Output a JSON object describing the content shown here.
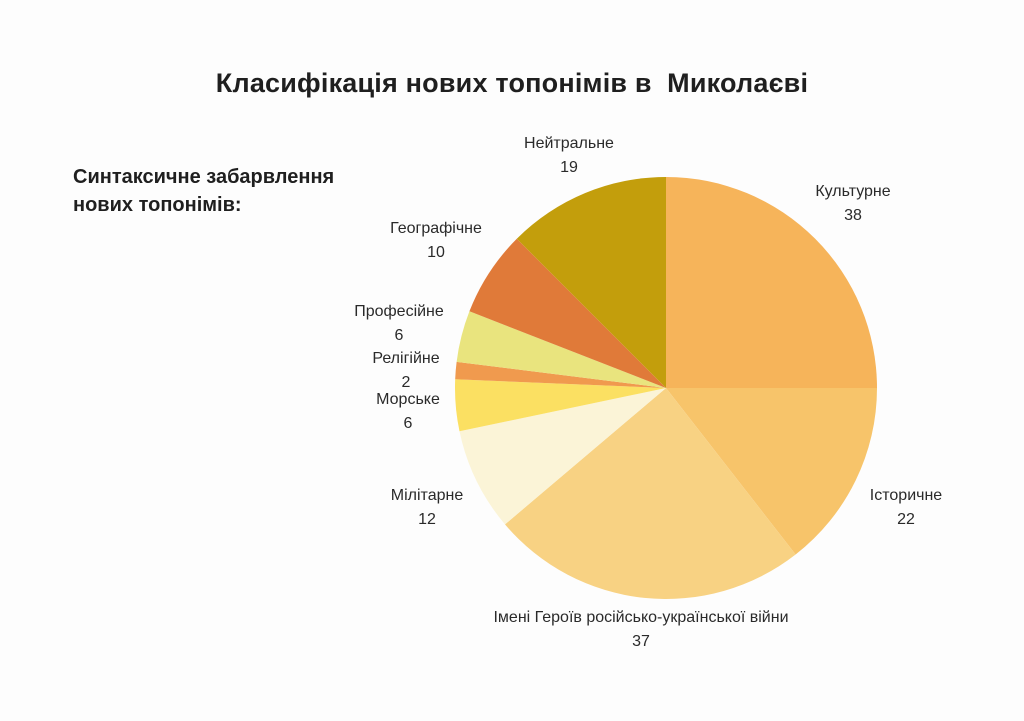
{
  "chart_data": {
    "type": "pie",
    "title": "Класифікація нових топонімів в  Миколаєві",
    "subtitle": "Синтаксичне забарвлення нових топонімів:",
    "start_angle_deg": 0,
    "direction": "clockwise",
    "slices": [
      {
        "label": "Культурне",
        "value": 38,
        "color": "#F6B45A"
      },
      {
        "label": "Історичне",
        "value": 22,
        "color": "#F7C46A"
      },
      {
        "label": "Імені Героїв російсько-української війни",
        "value": 37,
        "color": "#F8D283"
      },
      {
        "label": "Мілітарне",
        "value": 12,
        "color": "#FBF4D7"
      },
      {
        "label": "Морське",
        "value": 6,
        "color": "#FBE062"
      },
      {
        "label": "Релігійне",
        "value": 2,
        "color": "#F09A4E"
      },
      {
        "label": "Професійне",
        "value": 6,
        "color": "#E9E47E"
      },
      {
        "label": "Географічне",
        "value": 10,
        "color": "#E07A39"
      },
      {
        "label": "Нейтральне",
        "value": 19,
        "color": "#C39E0C"
      }
    ]
  }
}
